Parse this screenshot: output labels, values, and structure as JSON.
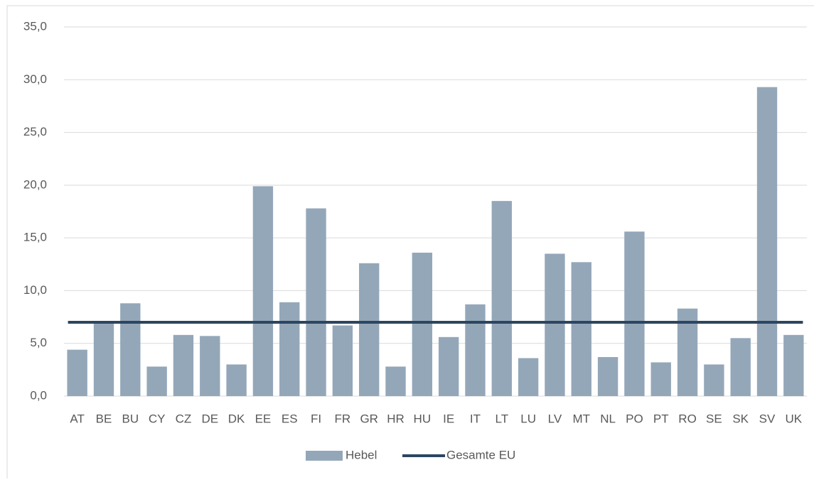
{
  "chart_data": {
    "type": "bar",
    "categories": [
      "AT",
      "BE",
      "BU",
      "CY",
      "CZ",
      "DE",
      "DK",
      "EE",
      "ES",
      "FI",
      "FR",
      "GR",
      "HR",
      "HU",
      "IE",
      "IT",
      "LT",
      "LU",
      "LV",
      "MT",
      "NL",
      "PO",
      "PT",
      "RO",
      "SE",
      "SK",
      "SV",
      "UK"
    ],
    "series": [
      {
        "name": "Hebel",
        "type": "bar",
        "color": "#94a7b9",
        "values": [
          4.4,
          7.1,
          8.8,
          2.8,
          5.8,
          5.7,
          3.0,
          19.9,
          8.9,
          17.8,
          6.7,
          12.6,
          2.8,
          13.6,
          5.6,
          8.7,
          18.5,
          3.6,
          13.5,
          12.7,
          3.7,
          15.6,
          3.2,
          8.3,
          3.0,
          5.5,
          29.3,
          5.8
        ]
      },
      {
        "name": "Gesamte EU",
        "type": "line",
        "color": "#2c4660",
        "values": [
          7.0,
          7.0,
          7.0,
          7.0,
          7.0,
          7.0,
          7.0,
          7.0,
          7.0,
          7.0,
          7.0,
          7.0,
          7.0,
          7.0,
          7.0,
          7.0,
          7.0,
          7.0,
          7.0,
          7.0,
          7.0,
          7.0,
          7.0,
          7.0,
          7.0,
          7.0,
          7.0,
          7.0
        ]
      }
    ],
    "ylim": [
      0,
      35
    ],
    "yticks": [
      {
        "value": 0,
        "label": "0,0"
      },
      {
        "value": 5,
        "label": "5,0"
      },
      {
        "value": 10,
        "label": "10,0"
      },
      {
        "value": 15,
        "label": "15,0"
      },
      {
        "value": 20,
        "label": "20,0"
      },
      {
        "value": 25,
        "label": "25,0"
      },
      {
        "value": 30,
        "label": "30,0"
      },
      {
        "value": 35,
        "label": "35,0"
      }
    ],
    "grid": true,
    "legend": "bottom"
  }
}
